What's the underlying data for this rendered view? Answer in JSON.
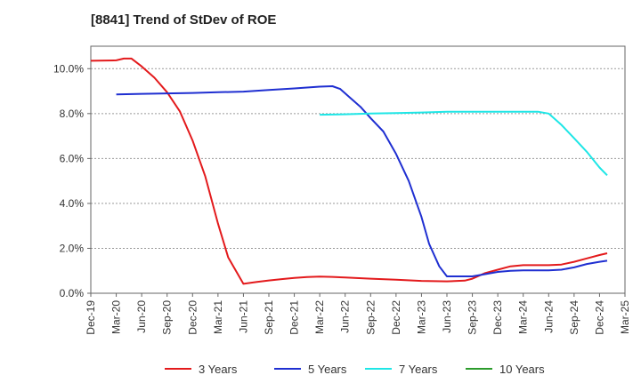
{
  "chart_data": {
    "type": "line",
    "title": "[8841]  Trend of StDev of ROE",
    "xlabel": "",
    "ylabel": "",
    "ylim": [
      0,
      11
    ],
    "x_ticks": [
      "Dec-19",
      "Mar-20",
      "Jun-20",
      "Sep-20",
      "Dec-20",
      "Mar-21",
      "Jun-21",
      "Sep-21",
      "Dec-21",
      "Mar-22",
      "Jun-22",
      "Sep-22",
      "Dec-22",
      "Mar-23",
      "Jun-23",
      "Sep-23",
      "Dec-23",
      "Mar-24",
      "Jun-24",
      "Sep-24",
      "Dec-24",
      "Mar-25"
    ],
    "y_ticks": [
      0,
      2,
      4,
      6,
      8,
      10
    ],
    "y_tick_labels": [
      "0.0%",
      "2.0%",
      "4.0%",
      "6.0%",
      "8.0%",
      "10.0%"
    ],
    "grid": "horizontal-dashed",
    "legend_position": "bottom",
    "series": [
      {
        "name": "3 Years",
        "color": "#e31a1c",
        "points": [
          [
            0,
            10.35
          ],
          [
            1,
            10.37
          ],
          [
            1.3,
            10.45
          ],
          [
            1.6,
            10.45
          ],
          [
            2,
            10.1
          ],
          [
            2.5,
            9.6
          ],
          [
            3,
            8.95
          ],
          [
            3.5,
            8.1
          ],
          [
            4,
            6.8
          ],
          [
            4.5,
            5.2
          ],
          [
            5,
            3.1
          ],
          [
            5.4,
            1.6
          ],
          [
            6,
            0.42
          ],
          [
            6.5,
            0.5
          ],
          [
            7,
            0.57
          ],
          [
            7.5,
            0.63
          ],
          [
            8,
            0.68
          ],
          [
            8.5,
            0.72
          ],
          [
            9,
            0.74
          ],
          [
            9.5,
            0.73
          ],
          [
            10,
            0.7
          ],
          [
            11,
            0.65
          ],
          [
            12,
            0.6
          ],
          [
            13,
            0.55
          ],
          [
            14,
            0.53
          ],
          [
            14.7,
            0.56
          ],
          [
            15,
            0.65
          ],
          [
            15.5,
            0.9
          ],
          [
            16,
            1.05
          ],
          [
            16.5,
            1.2
          ],
          [
            17,
            1.25
          ],
          [
            18,
            1.25
          ],
          [
            18.5,
            1.28
          ],
          [
            19,
            1.4
          ],
          [
            19.5,
            1.55
          ],
          [
            20,
            1.7
          ],
          [
            20.3,
            1.78
          ]
        ]
      },
      {
        "name": "5 Years",
        "color": "#1f2fd1",
        "points": [
          [
            1,
            8.85
          ],
          [
            2,
            8.88
          ],
          [
            3,
            8.9
          ],
          [
            4,
            8.92
          ],
          [
            5,
            8.95
          ],
          [
            6,
            8.98
          ],
          [
            7,
            9.05
          ],
          [
            8,
            9.12
          ],
          [
            9,
            9.2
          ],
          [
            9.5,
            9.22
          ],
          [
            9.8,
            9.1
          ],
          [
            10.2,
            8.7
          ],
          [
            10.6,
            8.3
          ],
          [
            11,
            7.8
          ],
          [
            11.5,
            7.2
          ],
          [
            12,
            6.2
          ],
          [
            12.5,
            5.0
          ],
          [
            13,
            3.4
          ],
          [
            13.3,
            2.2
          ],
          [
            13.7,
            1.2
          ],
          [
            14,
            0.75
          ],
          [
            14.5,
            0.75
          ],
          [
            15,
            0.75
          ],
          [
            15.5,
            0.85
          ],
          [
            16,
            0.95
          ],
          [
            16.5,
            1.0
          ],
          [
            17,
            1.02
          ],
          [
            18,
            1.02
          ],
          [
            18.5,
            1.05
          ],
          [
            19,
            1.15
          ],
          [
            19.5,
            1.3
          ],
          [
            20,
            1.4
          ],
          [
            20.3,
            1.45
          ]
        ]
      },
      {
        "name": "7 Years",
        "color": "#1ee6e6",
        "points": [
          [
            9,
            7.95
          ],
          [
            10,
            7.97
          ],
          [
            11,
            8.0
          ],
          [
            12,
            8.02
          ],
          [
            13,
            8.05
          ],
          [
            14,
            8.08
          ],
          [
            15,
            8.08
          ],
          [
            16,
            8.08
          ],
          [
            17,
            8.08
          ],
          [
            17.6,
            8.08
          ],
          [
            18,
            8.0
          ],
          [
            18.5,
            7.5
          ],
          [
            19,
            6.9
          ],
          [
            19.5,
            6.3
          ],
          [
            20,
            5.6
          ],
          [
            20.3,
            5.25
          ]
        ]
      },
      {
        "name": "10 Years",
        "color": "#2c9b2c",
        "points": []
      }
    ]
  }
}
